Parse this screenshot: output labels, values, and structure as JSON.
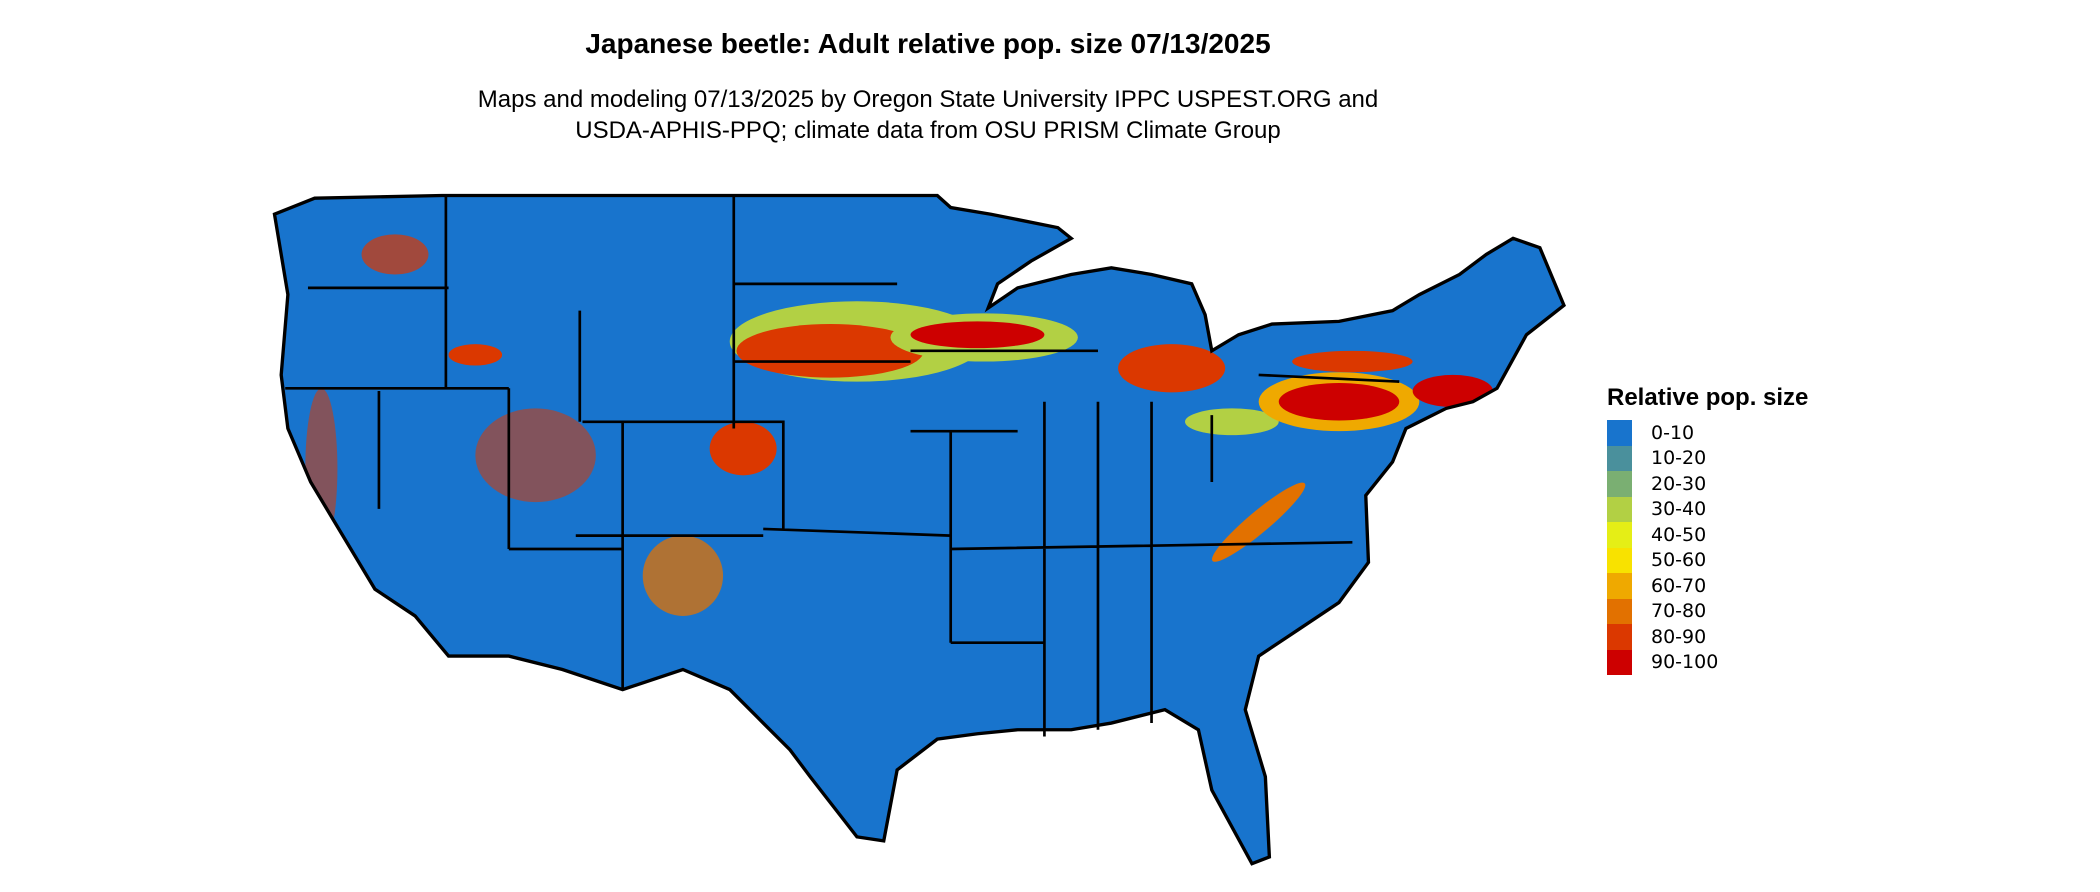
{
  "title": "Japanese beetle: Adult relative pop. size 07/13/2025",
  "subtitle_line1": "Maps and modeling 07/13/2025 by Oregon State University IPPC USPEST.ORG and",
  "subtitle_line2": "USDA-APHIS-PPQ; climate data from OSU PRISM Climate Group",
  "legend": {
    "title": "Relative pop. size",
    "items": [
      {
        "label": "0-10",
        "color": "#1874CD"
      },
      {
        "label": "10-20",
        "color": "#4A909C"
      },
      {
        "label": "20-30",
        "color": "#7AAF72"
      },
      {
        "label": "30-40",
        "color": "#B2D044"
      },
      {
        "label": "40-50",
        "color": "#E5EE16"
      },
      {
        "label": "50-60",
        "color": "#F8E200"
      },
      {
        "label": "60-70",
        "color": "#EFA900"
      },
      {
        "label": "70-80",
        "color": "#E27100"
      },
      {
        "label": "80-90",
        "color": "#DB3800"
      },
      {
        "label": "90-100",
        "color": "#CD0000"
      }
    ]
  }
}
